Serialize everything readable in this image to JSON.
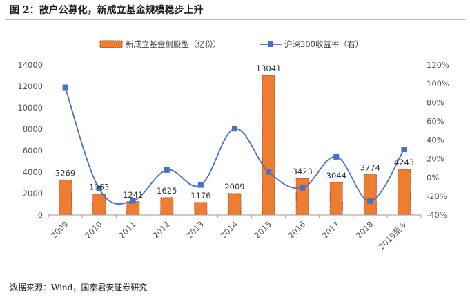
{
  "figure": {
    "title": "图 2：散户公募化，新成立基金规模稳步上升",
    "source": "数据来源：Wind，国泰君安证券研究"
  },
  "colors": {
    "bar_fill": "#ED7D31",
    "bar_stroke": "#C0392B",
    "line": "#4472C4",
    "marker": "#4472C4",
    "axis": "#9a9a9a"
  },
  "chart_data": {
    "type": "bar",
    "categories": [
      "2009",
      "2010",
      "2011",
      "2012",
      "2013",
      "2014",
      "2015",
      "2016",
      "2017",
      "2018",
      "2019至今"
    ],
    "series": [
      {
        "name": "新成立基金偏股型（亿份）",
        "type": "bar",
        "axis": "left",
        "values": [
          3269,
          1963,
          1241,
          1625,
          1176,
          2009,
          13041,
          3423,
          3044,
          3774,
          4243
        ],
        "data_labels": [
          "3269",
          "1963",
          "1241",
          "1625",
          "1176",
          "2009",
          "13041",
          "3423",
          "3044",
          "3774",
          "4243"
        ]
      },
      {
        "name": "沪深300收益率（右）",
        "type": "line",
        "axis": "right",
        "smooth": true,
        "values": [
          96,
          -12,
          -25,
          8,
          -8,
          52,
          6,
          -11,
          22,
          -25,
          30
        ]
      }
    ],
    "y_left": {
      "lim": [
        0,
        14000
      ],
      "ticks": [
        "0",
        "2000",
        "4000",
        "6000",
        "8000",
        "10000",
        "12000",
        "14000"
      ]
    },
    "y_right": {
      "lim": [
        -40,
        120
      ],
      "unit": "%",
      "ticks": [
        "-40%",
        "-20%",
        "0%",
        "20%",
        "40%",
        "60%",
        "80%",
        "100%",
        "120%"
      ]
    },
    "legend": "top-center",
    "grid": false
  }
}
